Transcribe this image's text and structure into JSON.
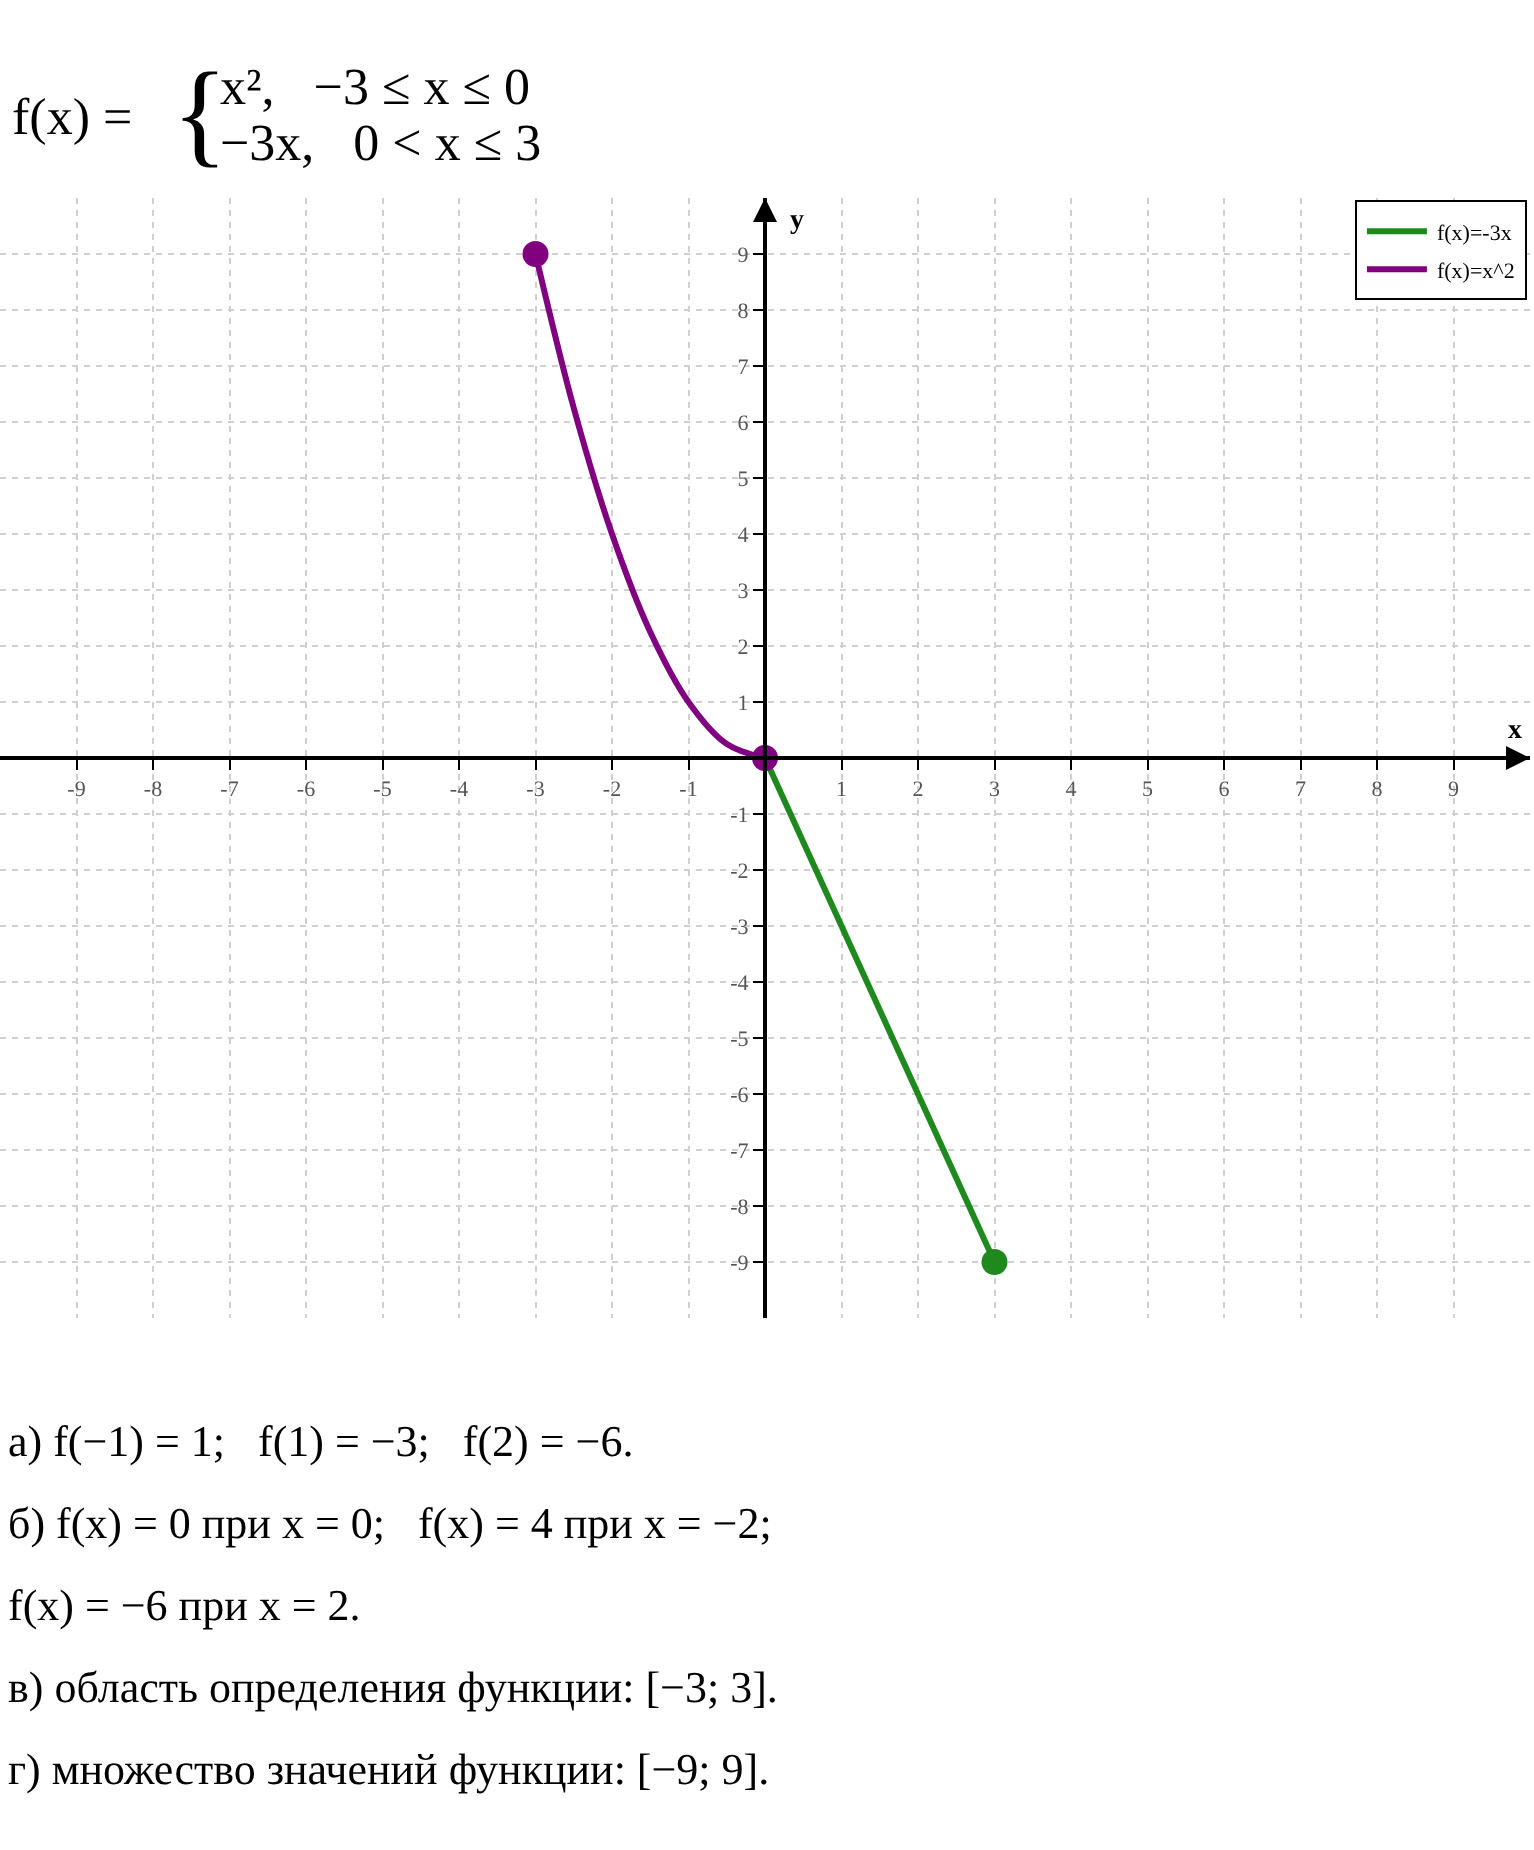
{
  "chart_data": {
    "type": "line",
    "title": "f(x) = {x²,   −3 ≤ x ≤ 0\n−3x,   0 < x ≤ 3",
    "xlabel": "x",
    "ylabel": "y",
    "xlim": [
      -10,
      10
    ],
    "ylim": [
      -10,
      10
    ],
    "xticks": [
      -9,
      -8,
      -7,
      -6,
      -5,
      -4,
      -3,
      -2,
      -1,
      1,
      2,
      3,
      4,
      5,
      6,
      7,
      8,
      9
    ],
    "yticks": [
      -9,
      -8,
      -7,
      -6,
      -5,
      -4,
      -3,
      -2,
      -1,
      1,
      2,
      3,
      4,
      5,
      6,
      7,
      8,
      9
    ],
    "grid": true,
    "legend": "top right",
    "series": [
      {
        "name": "f(x)=-3x",
        "color": "#1e8a1e",
        "x": [
          0,
          3
        ],
        "values": [
          0,
          -9
        ]
      },
      {
        "name": "f(x)=x^2",
        "color": "#800080",
        "x": [
          -3,
          -2.5,
          -2,
          -1.5,
          -1,
          -0.5,
          0
        ],
        "values": [
          9,
          6.25,
          4,
          2.25,
          1,
          0.25,
          0
        ]
      },
      {
        "type": "scatter",
        "marker": "circle",
        "x": [
          -3,
          0,
          3
        ],
        "values": [
          9,
          0,
          -9
        ],
        "colors": [
          "#800080",
          "#800080",
          "#1e8a1e"
        ]
      }
    ],
    "annotations": [
      "а) f(−1) = 1;   f(1) = −3;   f(2) = −6.",
      "б) f(x) = 0 при x = 0;   f(x) = 4 при x = −2;",
      "f(x) = −6 при x = 2.",
      "в) область определения функции: [−3; 3].",
      "г) множество значений функции: [−9; 9]."
    ]
  }
}
